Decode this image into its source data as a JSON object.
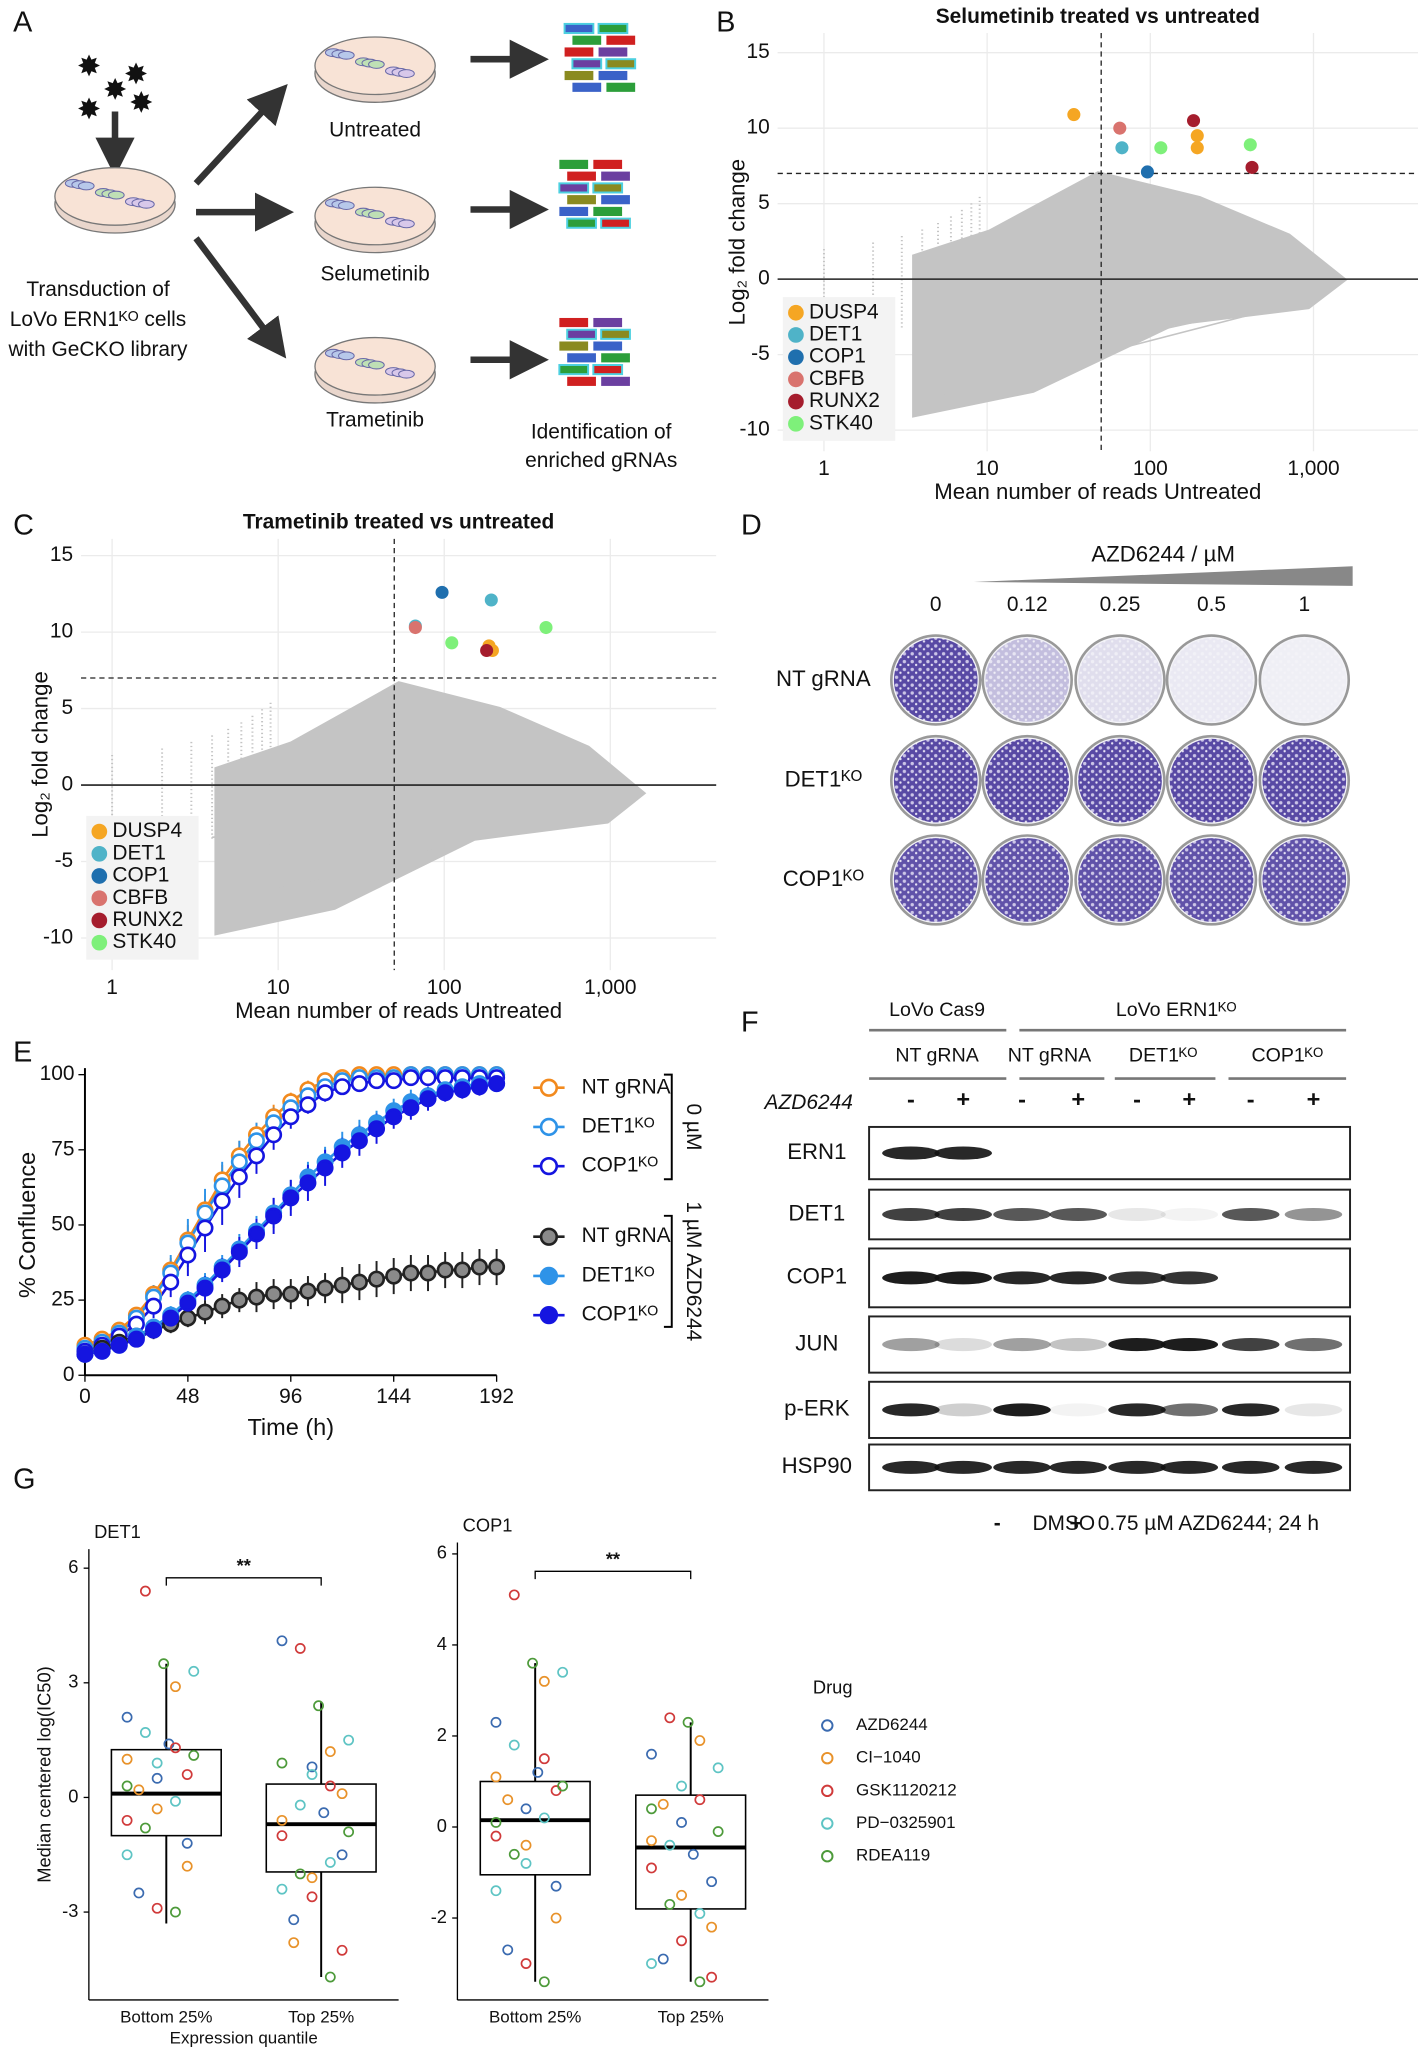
{
  "panel_labels": [
    "A",
    "B",
    "C",
    "D",
    "E",
    "F",
    "G"
  ],
  "schematic": {
    "source_label": [
      "Transduction of",
      "LoVo ERN1ᴷᴼ cells",
      "with GeCKO library"
    ],
    "conditions": [
      "Untreated",
      "Selumetinib",
      "Trametinib"
    ],
    "readout": [
      "Identification of",
      "enriched gRNAs"
    ]
  },
  "colony_assay": {
    "treatment": "AZD6244 / µM",
    "concentrations": [
      "0",
      "0.12",
      "0.25",
      "0.5",
      "1"
    ],
    "rows": [
      "NT gRNA",
      "DET1ᴷᴼ",
      "COP1ᴷᴼ"
    ]
  },
  "western_blot": {
    "top_groups": [
      "LoVo Cas9",
      "LoVo ERN1ᴷᴼ"
    ],
    "lines": [
      "NT gRNA",
      "NT gRNA",
      "DET1ᴷᴼ",
      "COP1ᴷᴼ"
    ],
    "treatment_label": "AZD6244",
    "lanes": [
      "-",
      "+",
      "-",
      "+",
      "-",
      "+",
      "-",
      "+"
    ],
    "proteins": [
      "ERN1",
      "DET1",
      "COP1",
      "JUN",
      "p-ERK",
      "HSP90"
    ],
    "footer": [
      "-",
      "DMSO",
      "+",
      "0.75 µM AZD6244; 24 h"
    ]
  },
  "chart_data": [
    {
      "type": "scatter",
      "title": "Selumetinib treated vs untreated",
      "xlabel": "Mean number of reads Untreated",
      "ylabel": "Log₂ fold change",
      "log_x": true,
      "xlim": [
        0.52,
        4370
      ],
      "ylim": [
        -11.4,
        16.3
      ],
      "xticks": [
        1,
        10,
        100,
        {
          "value": 1000,
          "label": "1,000"
        }
      ],
      "yticks": [
        -10,
        -5,
        0,
        5,
        10,
        15
      ],
      "hline": 7,
      "vline": 50,
      "grid": true,
      "legend": "lower left",
      "series": [
        {
          "name": "DUSP4",
          "color": "#f5a623",
          "x": [
            34,
            194,
            194
          ],
          "values": [
            10.9,
            9.5,
            8.7
          ]
        },
        {
          "name": "DET1",
          "color": "#4fb3c8",
          "x": [
            67
          ],
          "values": [
            8.7
          ]
        },
        {
          "name": "COP1",
          "color": "#1f6fae",
          "x": [
            96
          ],
          "values": [
            7.1
          ]
        },
        {
          "name": "CBFB",
          "color": "#d9736e",
          "x": [
            65
          ],
          "values": [
            10.0
          ]
        },
        {
          "name": "RUNX2",
          "color": "#a51d2d",
          "x": [
            184,
            420
          ],
          "values": [
            10.5,
            7.4
          ]
        },
        {
          "name": "STK40",
          "color": "#7ef07a",
          "x": [
            116,
            410
          ],
          "values": [
            8.7,
            8.9
          ]
        }
      ]
    },
    {
      "type": "scatter",
      "title": "Trametinib treated vs untreated",
      "xlabel": "Mean number of reads Untreated",
      "ylabel": "Log₂ fold change",
      "log_x": true,
      "xlim": [
        0.65,
        4340
      ],
      "ylim": [
        -12.1,
        16.1
      ],
      "xticks": [
        1,
        10,
        100,
        {
          "value": 1000,
          "label": "1,000"
        }
      ],
      "yticks": [
        -10,
        -5,
        0,
        5,
        10,
        15
      ],
      "hline": 7,
      "vline": 50,
      "grid": true,
      "legend": "lower left",
      "series": [
        {
          "name": "DUSP4",
          "color": "#f5a623",
          "x": [
            195,
            186
          ],
          "values": [
            8.8,
            9.1
          ]
        },
        {
          "name": "DET1",
          "color": "#4fb3c8",
          "x": [
            67,
            192
          ],
          "values": [
            10.4,
            12.1
          ]
        },
        {
          "name": "COP1",
          "color": "#1f6fae",
          "x": [
            97
          ],
          "values": [
            12.6
          ]
        },
        {
          "name": "CBFB",
          "color": "#d9736e",
          "x": [
            67
          ],
          "values": [
            10.3
          ]
        },
        {
          "name": "RUNX2",
          "color": "#a51d2d",
          "x": [
            180
          ],
          "values": [
            8.8
          ]
        },
        {
          "name": "STK40",
          "color": "#7ef07a",
          "x": [
            111,
            410
          ],
          "values": [
            9.3,
            10.3
          ]
        }
      ]
    },
    {
      "type": "line",
      "xlabel": "Time (h)",
      "ylabel": "% Confluence",
      "xlim": [
        0,
        192
      ],
      "ylim": [
        0,
        100
      ],
      "xticks": [
        0,
        48,
        96,
        144,
        192
      ],
      "yticks": [
        0,
        25,
        50,
        75,
        100
      ],
      "x": [
        0,
        8,
        16,
        24,
        32,
        40,
        48,
        56,
        64,
        72,
        80,
        88,
        96,
        104,
        112,
        120,
        128,
        136,
        144,
        152,
        160,
        168,
        176,
        184,
        192
      ],
      "legend_groups": [
        "0 µM",
        "1 µM AZD6244"
      ],
      "series": [
        {
          "name": "NT gRNA",
          "color": "#f28a1e",
          "marker": "open",
          "group": 0,
          "values": [
            10,
            12,
            15,
            20,
            27,
            35,
            45,
            55,
            65,
            73,
            80,
            86,
            91,
            95,
            98,
            99,
            100,
            100,
            100,
            100,
            100,
            100,
            100,
            100,
            100
          ],
          "errors": [
            1,
            1,
            2,
            2,
            3,
            4,
            5,
            5,
            5,
            5,
            4,
            4,
            3,
            3,
            2,
            2,
            1,
            1,
            1,
            1,
            1,
            1,
            1,
            1,
            1
          ]
        },
        {
          "name": "DET1ᴷᴼ",
          "color": "#2e93e8",
          "marker": "open",
          "group": 0,
          "values": [
            9,
            11,
            14,
            19,
            26,
            34,
            44,
            54,
            63,
            71,
            78,
            84,
            89,
            93,
            96,
            98,
            99,
            99,
            99,
            100,
            100,
            100,
            100,
            100,
            100
          ],
          "errors": [
            1,
            1,
            2,
            3,
            4,
            6,
            8,
            8,
            8,
            7,
            6,
            5,
            4,
            3,
            3,
            2,
            2,
            1,
            1,
            1,
            1,
            1,
            1,
            1,
            1
          ]
        },
        {
          "name": "COP1ᴷᴼ",
          "color": "#1515e0",
          "marker": "open",
          "group": 0,
          "values": [
            8,
            10,
            13,
            17,
            23,
            31,
            40,
            49,
            58,
            66,
            73,
            80,
            86,
            90,
            94,
            96,
            97,
            98,
            98,
            99,
            99,
            99,
            99,
            99,
            99
          ],
          "errors": [
            1,
            1,
            2,
            3,
            4,
            5,
            7,
            8,
            8,
            7,
            6,
            5,
            4,
            3,
            3,
            2,
            2,
            2,
            1,
            1,
            1,
            1,
            1,
            1,
            1
          ]
        },
        {
          "name": "NT gRNA",
          "color": "#555555",
          "marker": "filled",
          "group": 1,
          "values": [
            7,
            9,
            11,
            13,
            15,
            17,
            19,
            21,
            23,
            25,
            26,
            27,
            27,
            28,
            29,
            30,
            31,
            32,
            33,
            34,
            34,
            35,
            35,
            36,
            36
          ],
          "errors": [
            2,
            2,
            2,
            2,
            3,
            3,
            3,
            4,
            4,
            4,
            5,
            5,
            5,
            5,
            5,
            6,
            6,
            6,
            6,
            6,
            6,
            6,
            6,
            6,
            6
          ]
        },
        {
          "name": "DET1ᴷᴼ",
          "color": "#2e93e8",
          "marker": "filled",
          "group": 1,
          "values": [
            7,
            8,
            10,
            13,
            16,
            20,
            25,
            30,
            36,
            42,
            48,
            54,
            60,
            66,
            71,
            76,
            80,
            84,
            88,
            91,
            93,
            95,
            96,
            97,
            97
          ],
          "errors": [
            1,
            1,
            1,
            2,
            2,
            3,
            3,
            4,
            4,
            5,
            5,
            5,
            5,
            5,
            5,
            5,
            5,
            4,
            4,
            4,
            3,
            3,
            3,
            3,
            2
          ]
        },
        {
          "name": "COP1ᴷᴼ",
          "color": "#1515e0",
          "marker": "filled",
          "group": 1,
          "values": [
            7,
            8,
            10,
            12,
            15,
            19,
            24,
            29,
            35,
            41,
            47,
            53,
            59,
            64,
            69,
            74,
            78,
            82,
            86,
            89,
            92,
            94,
            95,
            96,
            97
          ],
          "errors": [
            1,
            1,
            1,
            2,
            2,
            3,
            3,
            4,
            4,
            5,
            5,
            6,
            6,
            6,
            6,
            5,
            5,
            5,
            4,
            4,
            4,
            3,
            3,
            3,
            2
          ]
        }
      ]
    },
    {
      "type": "box",
      "title": "DET1",
      "ylabel": "Median centered log(IC50)",
      "xlabel": "Expression quantile",
      "categories": [
        "Bottom 25%",
        "Top 25%"
      ],
      "ylim": [
        -5.3,
        6.5
      ],
      "yticks": [
        -3,
        0,
        3,
        6
      ],
      "significance": "**",
      "boxes": [
        {
          "min": -3.3,
          "q1": -1.0,
          "median": 0.1,
          "q3": 1.25,
          "max": 3.5
        },
        {
          "min": -4.7,
          "q1": -1.95,
          "median": -0.7,
          "q3": 0.35,
          "max": 2.5
        }
      ],
      "series": [
        {
          "color": "#3b6bb0",
          "values": [
            [
              2.1,
              0.5,
              -1.2,
              -2.5,
              1.4
            ],
            [
              4.1,
              0.8,
              -1.5,
              -3.2,
              -0.4
            ]
          ]
        },
        {
          "color": "#e8922a",
          "values": [
            [
              2.9,
              1.0,
              -0.3,
              -1.8,
              0.2
            ],
            [
              1.2,
              -0.6,
              -2.1,
              0.1,
              -3.8
            ]
          ]
        },
        {
          "color": "#d03a3a",
          "values": [
            [
              5.4,
              1.3,
              -0.6,
              -2.9,
              0.6
            ],
            [
              3.9,
              0.3,
              -1.0,
              -2.6,
              -4.0
            ]
          ]
        },
        {
          "color": "#5ec4c4",
          "values": [
            [
              3.3,
              1.7,
              -0.1,
              -1.5,
              0.9
            ],
            [
              1.5,
              -0.2,
              -1.7,
              -2.4,
              0.6
            ]
          ]
        },
        {
          "color": "#4d9a3a",
          "values": [
            [
              3.5,
              1.1,
              -0.8,
              -3.0,
              0.3
            ],
            [
              2.4,
              -0.9,
              -2.0,
              -4.7,
              0.9
            ]
          ]
        }
      ]
    },
    {
      "type": "box",
      "title": "COP1",
      "categories": [
        "Bottom 25%",
        "Top 25%"
      ],
      "ylim": [
        -3.8,
        6.25
      ],
      "yticks": [
        -2,
        0,
        2,
        4,
        6
      ],
      "significance": "**",
      "boxes": [
        {
          "min": -3.4,
          "q1": -1.05,
          "median": 0.15,
          "q3": 1.0,
          "max": 3.6
        },
        {
          "min": -3.4,
          "q1": -1.8,
          "median": -0.45,
          "q3": 0.7,
          "max": 2.3
        }
      ],
      "series": [
        {
          "color": "#3b6bb0",
          "values": [
            [
              2.3,
              0.4,
              -1.3,
              -2.7,
              1.2
            ],
            [
              1.6,
              0.1,
              -1.2,
              -2.9,
              -0.6
            ]
          ]
        },
        {
          "color": "#e8922a",
          "values": [
            [
              3.2,
              1.1,
              -0.4,
              -2.0,
              0.6
            ],
            [
              1.9,
              -0.3,
              -1.5,
              -2.2,
              0.5
            ]
          ]
        },
        {
          "color": "#d03a3a",
          "values": [
            [
              5.1,
              1.5,
              -0.2,
              -3.0,
              0.8
            ],
            [
              2.4,
              0.6,
              -0.9,
              -2.5,
              -3.3
            ]
          ]
        },
        {
          "color": "#5ec4c4",
          "values": [
            [
              3.4,
              1.8,
              0.2,
              -1.4,
              -0.8
            ],
            [
              1.3,
              -0.4,
              -1.9,
              -3.0,
              0.9
            ]
          ]
        },
        {
          "color": "#4d9a3a",
          "values": [
            [
              3.6,
              0.9,
              -0.6,
              -3.4,
              0.1
            ],
            [
              2.3,
              -0.1,
              -1.7,
              -3.4,
              0.4
            ]
          ]
        }
      ]
    }
  ],
  "drug_legend": {
    "title": "Drug",
    "items": [
      {
        "name": "AZD6244",
        "color": "#3b6bb0"
      },
      {
        "name": "CI−1040",
        "color": "#e8922a"
      },
      {
        "name": "GSK1120212",
        "color": "#d03a3a"
      },
      {
        "name": "PD−0325901",
        "color": "#5ec4c4"
      },
      {
        "name": "RDEA119",
        "color": "#4d9a3a"
      }
    ]
  }
}
